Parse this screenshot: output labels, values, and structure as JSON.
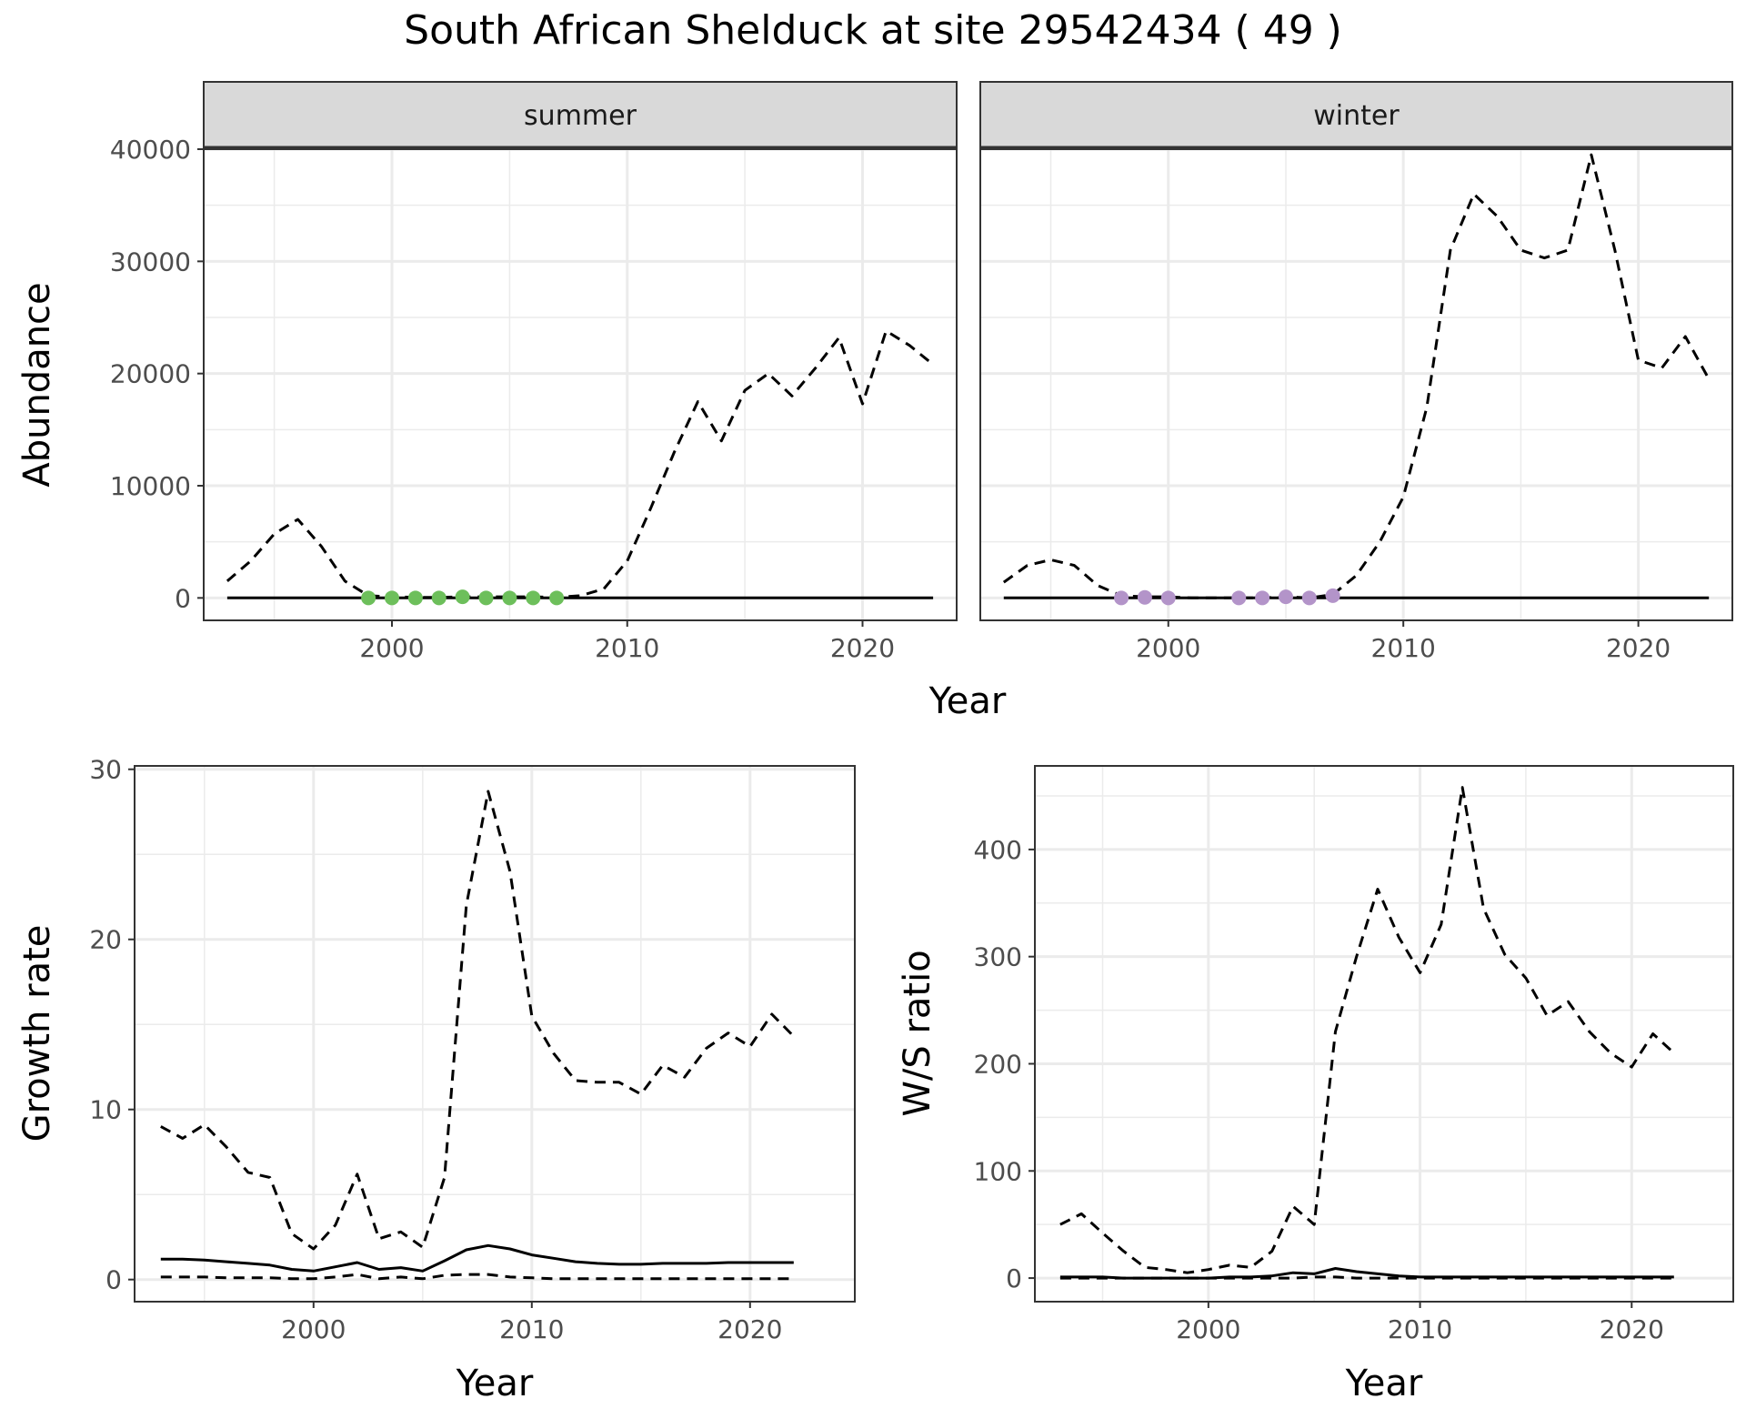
{
  "title": "South African Shelduck at site 29542434 ( 49 )",
  "colors": {
    "summer_points": "#6dbf5b",
    "winter_points": "#b394c9",
    "strip_bg": "#d9d9d9",
    "grid": "#ebebeb",
    "line": "#000000"
  },
  "chart_data": [
    {
      "type": "line",
      "facet": "summer",
      "strip_label": "summer",
      "xlabel": "Year",
      "ylabel": "Abundance",
      "xlim": [
        1992,
        2024
      ],
      "ylim": [
        -2000,
        40000
      ],
      "xticks": [
        2000,
        2010,
        2020
      ],
      "yticks": [
        0,
        10000,
        20000,
        30000,
        40000
      ],
      "ytick_labels": [
        "0",
        "10000",
        "20000",
        "30000",
        "40000"
      ],
      "grid": true,
      "series": [
        {
          "style": "dashed",
          "x": [
            1993,
            1994,
            1995,
            1996,
            1997,
            1998,
            1999,
            2000,
            2001,
            2002,
            2003,
            2004,
            2005,
            2006,
            2007,
            2008,
            2009,
            2010,
            2011,
            2012,
            2013,
            2014,
            2015,
            2016,
            2017,
            2018,
            2019,
            2020,
            2021,
            2022,
            2023
          ],
          "values": [
            1500,
            3300,
            5700,
            7000,
            4600,
            1500,
            200,
            100,
            50,
            50,
            100,
            100,
            100,
            100,
            50,
            200,
            800,
            3300,
            8000,
            13000,
            17500,
            14000,
            18500,
            20000,
            18000,
            20500,
            23200,
            17300,
            23800,
            22500,
            20800
          ]
        },
        {
          "style": "solid",
          "x": [
            1993,
            2023
          ],
          "values": [
            0,
            0
          ]
        }
      ],
      "points": {
        "x": [
          1999,
          2000,
          2001,
          2002,
          2003,
          2004,
          2005,
          2006,
          2007
        ],
        "values": [
          0,
          0,
          0,
          0,
          100,
          0,
          0,
          0,
          0
        ]
      }
    },
    {
      "type": "line",
      "facet": "winter",
      "strip_label": "winter",
      "xlabel": "Year",
      "ylabel": "Abundance",
      "xlim": [
        1992,
        2024
      ],
      "ylim": [
        -2000,
        40000
      ],
      "xticks": [
        2000,
        2010,
        2020
      ],
      "grid": true,
      "series": [
        {
          "style": "dashed",
          "x": [
            1993,
            1994,
            1995,
            1996,
            1997,
            1998,
            1999,
            2000,
            2001,
            2002,
            2003,
            2004,
            2005,
            2006,
            2007,
            2008,
            2009,
            2010,
            2011,
            2012,
            2013,
            2014,
            2015,
            2016,
            2017,
            2018,
            2019,
            2020,
            2021,
            2022,
            2023
          ],
          "values": [
            1400,
            2900,
            3400,
            2900,
            1100,
            200,
            100,
            100,
            0,
            0,
            0,
            0,
            100,
            0,
            300,
            2000,
            5000,
            9000,
            17000,
            31000,
            36000,
            34000,
            31000,
            30300,
            31000,
            39500,
            31000,
            21200,
            20500,
            23300,
            19500
          ]
        },
        {
          "style": "solid",
          "x": [
            1993,
            2023
          ],
          "values": [
            0,
            0
          ]
        }
      ],
      "points": {
        "x": [
          1998,
          1999,
          2000,
          2003,
          2004,
          2005,
          2006,
          2007
        ],
        "values": [
          0,
          50,
          0,
          0,
          0,
          100,
          0,
          200
        ]
      }
    },
    {
      "type": "line",
      "xlabel": "Year",
      "ylabel": "Growth rate",
      "xlim": [
        1991.8,
        2024.8
      ],
      "ylim": [
        -1.3,
        30.2
      ],
      "xticks": [
        2000,
        2010,
        2020
      ],
      "yticks": [
        0,
        10,
        20,
        30
      ],
      "grid": true,
      "series": [
        {
          "style": "dashed",
          "x": [
            1993,
            1994,
            1995,
            1996,
            1997,
            1998,
            1999,
            2000,
            2001,
            2002,
            2003,
            2004,
            2005,
            2006,
            2007,
            2008,
            2009,
            2010,
            2011,
            2012,
            2013,
            2014,
            2015,
            2016,
            2017,
            2018,
            2019,
            2020,
            2021,
            2022
          ],
          "values": [
            9.0,
            8.3,
            9.1,
            7.8,
            6.3,
            6.0,
            2.7,
            1.8,
            3.2,
            6.2,
            2.4,
            2.8,
            1.9,
            6.0,
            22.0,
            28.7,
            24.0,
            15.5,
            13.3,
            11.7,
            11.6,
            11.6,
            10.9,
            12.6,
            11.9,
            13.6,
            14.5,
            13.7,
            15.6,
            14.3
          ]
        },
        {
          "style": "solid",
          "x": [
            1993,
            1994,
            1995,
            1996,
            1997,
            1998,
            1999,
            2000,
            2001,
            2002,
            2003,
            2004,
            2005,
            2006,
            2007,
            2008,
            2009,
            2010,
            2011,
            2012,
            2013,
            2014,
            2015,
            2016,
            2017,
            2018,
            2019,
            2020,
            2021,
            2022
          ],
          "values": [
            1.2,
            1.2,
            1.15,
            1.05,
            0.95,
            0.85,
            0.6,
            0.5,
            0.75,
            1.0,
            0.6,
            0.7,
            0.5,
            1.1,
            1.75,
            2.0,
            1.8,
            1.45,
            1.25,
            1.05,
            0.95,
            0.9,
            0.9,
            0.95,
            0.95,
            0.95,
            1.0,
            1.0,
            1.0,
            1.0
          ]
        },
        {
          "style": "dashed",
          "x": [
            1993,
            1994,
            1995,
            1996,
            1997,
            1998,
            1999,
            2000,
            2001,
            2002,
            2003,
            2004,
            2005,
            2006,
            2007,
            2008,
            2009,
            2010,
            2011,
            2012,
            2013,
            2014,
            2015,
            2016,
            2017,
            2018,
            2019,
            2020,
            2021,
            2022
          ],
          "values": [
            0.15,
            0.15,
            0.15,
            0.1,
            0.1,
            0.1,
            0.05,
            0.05,
            0.15,
            0.3,
            0.05,
            0.15,
            0.05,
            0.25,
            0.3,
            0.3,
            0.15,
            0.1,
            0.05,
            0.05,
            0.05,
            0.05,
            0.05,
            0.05,
            0.05,
            0.05,
            0.05,
            0.05,
            0.05,
            0.05
          ]
        }
      ]
    },
    {
      "type": "line",
      "xlabel": "Year",
      "ylabel": "W/S ratio",
      "xlim": [
        1991.8,
        2024.8
      ],
      "ylim": [
        -22,
        478
      ],
      "xticks": [
        2000,
        2010,
        2020
      ],
      "yticks": [
        0,
        100,
        200,
        300,
        400
      ],
      "grid": true,
      "series": [
        {
          "style": "dashed",
          "x": [
            1993,
            1994,
            1995,
            1996,
            1997,
            1998,
            1999,
            2000,
            2001,
            2002,
            2003,
            2004,
            2005,
            2006,
            2007,
            2008,
            2009,
            2010,
            2011,
            2012,
            2013,
            2014,
            2015,
            2016,
            2017,
            2018,
            2019,
            2020,
            2021,
            2022
          ],
          "values": [
            50,
            60,
            42,
            25,
            10,
            8,
            5,
            8,
            12,
            10,
            25,
            67,
            50,
            230,
            300,
            363,
            318,
            285,
            330,
            458,
            345,
            302,
            280,
            245,
            258,
            230,
            210,
            197,
            228,
            210
          ]
        },
        {
          "style": "solid",
          "x": [
            1993,
            1994,
            1995,
            1996,
            1997,
            1998,
            1999,
            2000,
            2001,
            2002,
            2003,
            2004,
            2005,
            2006,
            2007,
            2008,
            2009,
            2010,
            2011,
            2012,
            2013,
            2014,
            2015,
            2016,
            2017,
            2018,
            2019,
            2020,
            2021,
            2022
          ],
          "values": [
            1,
            1,
            1,
            0,
            0,
            0,
            0,
            0,
            1,
            1,
            2,
            5,
            4,
            9,
            6,
            4,
            2,
            1,
            1,
            1,
            1,
            1,
            1,
            1,
            1,
            1,
            1,
            1,
            1,
            1
          ]
        },
        {
          "style": "dashed",
          "x": [
            1993,
            2004,
            2005,
            2006,
            2007,
            2022
          ],
          "values": [
            0,
            0,
            1,
            1,
            0,
            0
          ]
        }
      ]
    }
  ]
}
